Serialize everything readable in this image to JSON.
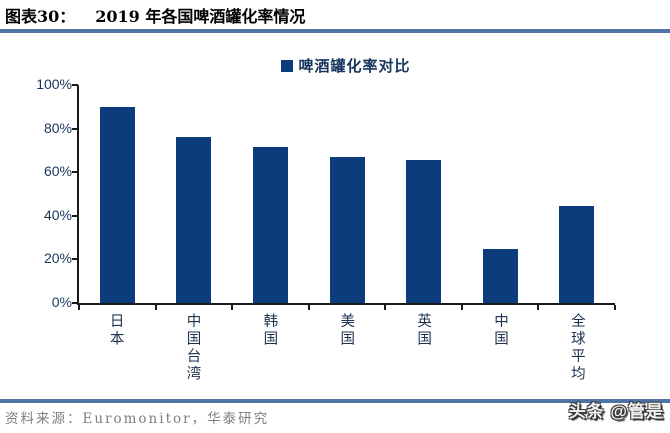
{
  "title": {
    "label": "图表30：",
    "text": "2019 年各国啤酒罐化率情况"
  },
  "legend": {
    "label": "啤酒罐化率对比"
  },
  "chart_data": {
    "type": "bar",
    "title": "啤酒罐化率对比",
    "categories": [
      "日本",
      "中国台湾",
      "韩国",
      "美国",
      "英国",
      "中国",
      "全球平均"
    ],
    "values": [
      90,
      76,
      71.5,
      67,
      65.5,
      25,
      44.5
    ],
    "xlabel": "",
    "ylabel": "",
    "ylim": [
      0,
      100
    ],
    "ytick_labels": [
      "100%",
      "80%",
      "60%",
      "40%",
      "20%",
      "0%"
    ],
    "bar_color": "#0C3C7C",
    "grid": false,
    "legend_position": "top-center"
  },
  "footer": {
    "source": "资料来源：Euromonitor，华泰研究"
  },
  "watermark": {
    "text": "头条 @管是"
  },
  "colors": {
    "bar": "#0C3C7C",
    "rule": "#4D74A5",
    "y_label": "#17365D",
    "category_label": "#1F3150",
    "legend_label": "#17365D",
    "footer_text": "#7F7F7F",
    "axis_line": "#1a1a1a"
  }
}
